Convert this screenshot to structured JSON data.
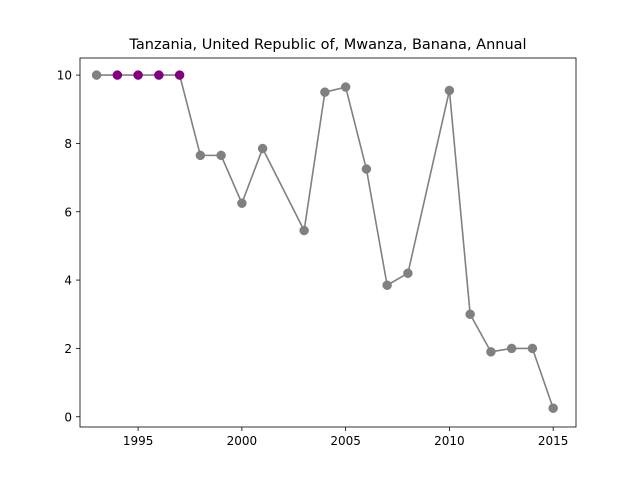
{
  "chart_data": {
    "type": "line",
    "title": "Tanzania, United Republic of, Mwanza, Banana, Annual",
    "xlabel": "",
    "ylabel": "",
    "xlim": [
      1992.2,
      2016.1
    ],
    "ylim": [
      -0.3,
      10.5
    ],
    "x_ticks": [
      1995,
      2000,
      2005,
      2010,
      2015
    ],
    "y_ticks": [
      0,
      2,
      4,
      6,
      8,
      10
    ],
    "grid": false,
    "line_color": "#808080",
    "marker_color": "#808080",
    "highlight_color": "#800080",
    "series": [
      {
        "points": [
          {
            "x": 1993,
            "y": 10.0
          },
          {
            "x": 1994,
            "y": 10.0,
            "highlight": true
          },
          {
            "x": 1995,
            "y": 10.0,
            "highlight": true
          },
          {
            "x": 1996,
            "y": 10.0,
            "highlight": true
          },
          {
            "x": 1997,
            "y": 10.0,
            "highlight": true
          },
          {
            "x": 1998,
            "y": 7.65
          },
          {
            "x": 1999,
            "y": 7.65
          },
          {
            "x": 2000,
            "y": 6.25
          },
          {
            "x": 2001,
            "y": 7.85
          },
          {
            "x": 2003,
            "y": 5.45
          },
          {
            "x": 2004,
            "y": 9.5
          },
          {
            "x": 2005,
            "y": 9.65
          },
          {
            "x": 2006,
            "y": 7.25
          },
          {
            "x": 2007,
            "y": 3.85
          },
          {
            "x": 2008,
            "y": 4.2
          },
          {
            "x": 2010,
            "y": 9.55
          },
          {
            "x": 2011,
            "y": 3.0
          },
          {
            "x": 2012,
            "y": 1.9
          },
          {
            "x": 2013,
            "y": 2.0
          },
          {
            "x": 2014,
            "y": 2.0
          },
          {
            "x": 2015,
            "y": 0.25
          }
        ]
      }
    ]
  }
}
